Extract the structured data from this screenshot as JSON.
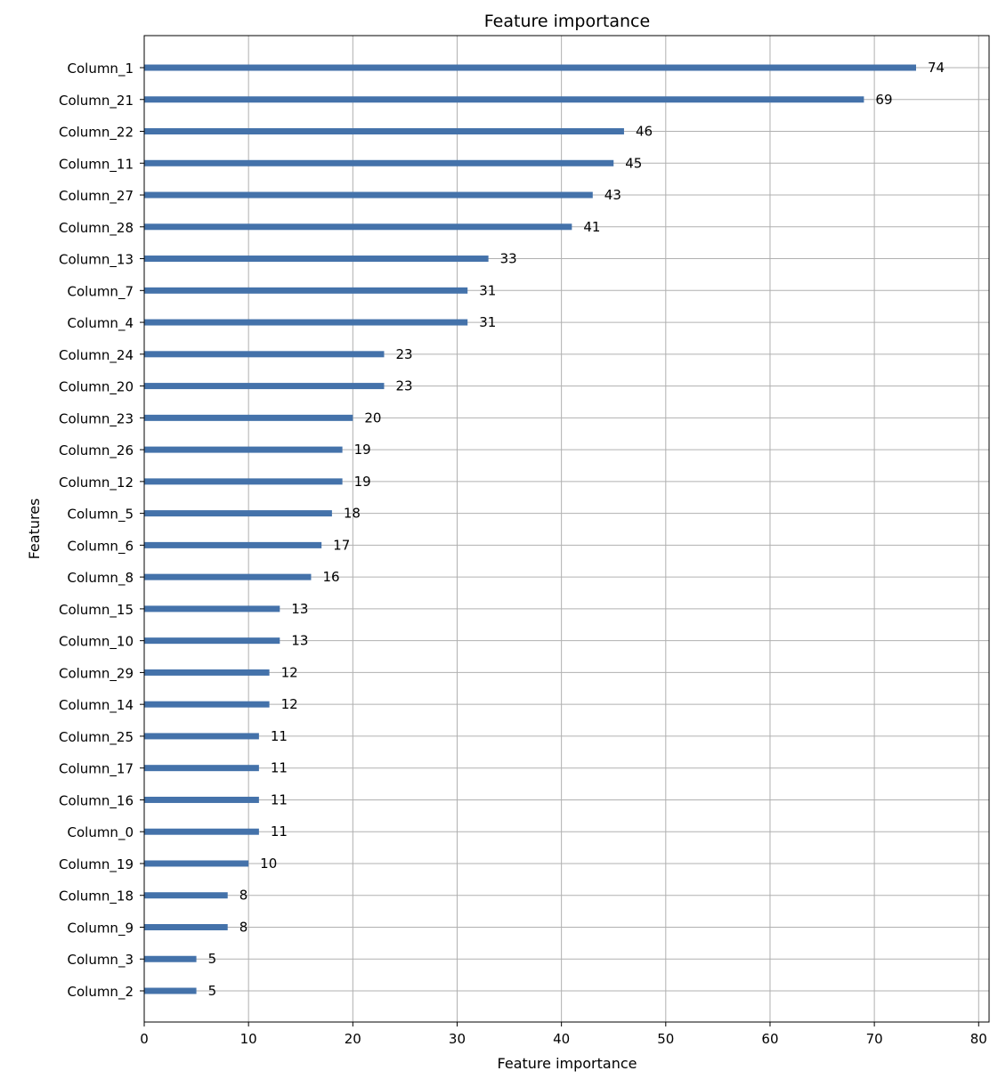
{
  "chart_data": {
    "type": "bar",
    "orientation": "horizontal",
    "title": "Feature importance",
    "xlabel": "Feature importance",
    "ylabel": "Features",
    "xlim": [
      0,
      81
    ],
    "xticks": [
      0,
      10,
      20,
      30,
      40,
      50,
      60,
      70,
      80
    ],
    "grid": true,
    "bar_color": "#4472aa",
    "categories": [
      "Column_1",
      "Column_21",
      "Column_22",
      "Column_11",
      "Column_27",
      "Column_28",
      "Column_13",
      "Column_7",
      "Column_4",
      "Column_24",
      "Column_20",
      "Column_23",
      "Column_26",
      "Column_12",
      "Column_5",
      "Column_6",
      "Column_8",
      "Column_15",
      "Column_10",
      "Column_29",
      "Column_14",
      "Column_25",
      "Column_17",
      "Column_16",
      "Column_0",
      "Column_19",
      "Column_18",
      "Column_9",
      "Column_3",
      "Column_2"
    ],
    "values": [
      74,
      69,
      46,
      45,
      43,
      41,
      33,
      31,
      31,
      23,
      23,
      20,
      19,
      19,
      18,
      17,
      16,
      13,
      13,
      12,
      12,
      11,
      11,
      11,
      11,
      10,
      8,
      8,
      5,
      5
    ]
  }
}
